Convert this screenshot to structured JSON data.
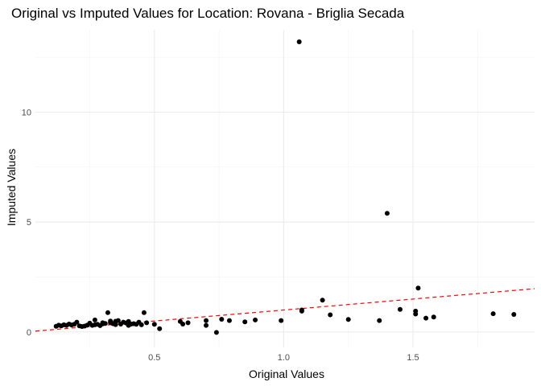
{
  "chart_data": {
    "type": "scatter",
    "title": "Original vs Imputed Values for Location: Rovana - Briglia Secada",
    "xlabel": "Original Values",
    "ylabel": "Imputed Values",
    "xlim": [
      0.04,
      1.97
    ],
    "ylim": [
      -0.7,
      13.75
    ],
    "xticks": [
      0.5,
      1.0,
      1.5
    ],
    "xtick_labels": [
      "0.5",
      "1.0",
      "1.5"
    ],
    "yticks": [
      0,
      5,
      10
    ],
    "ytick_labels": [
      "0",
      "5",
      "10"
    ],
    "grid": true,
    "reference_line": {
      "slope": 1,
      "intercept": 0,
      "style": "dashed",
      "color": "#ff0000"
    },
    "points": [
      [
        0.12,
        0.26
      ],
      [
        0.13,
        0.31
      ],
      [
        0.14,
        0.28
      ],
      [
        0.15,
        0.33
      ],
      [
        0.16,
        0.3
      ],
      [
        0.17,
        0.36
      ],
      [
        0.18,
        0.32
      ],
      [
        0.19,
        0.35
      ],
      [
        0.2,
        0.45
      ],
      [
        0.21,
        0.28
      ],
      [
        0.22,
        0.25
      ],
      [
        0.23,
        0.27
      ],
      [
        0.24,
        0.31
      ],
      [
        0.25,
        0.4
      ],
      [
        0.26,
        0.3
      ],
      [
        0.27,
        0.55
      ],
      [
        0.27,
        0.33
      ],
      [
        0.28,
        0.35
      ],
      [
        0.29,
        0.29
      ],
      [
        0.3,
        0.42
      ],
      [
        0.3,
        0.37
      ],
      [
        0.31,
        0.39
      ],
      [
        0.32,
        0.88
      ],
      [
        0.33,
        0.5
      ],
      [
        0.33,
        0.43
      ],
      [
        0.34,
        0.38
      ],
      [
        0.35,
        0.49
      ],
      [
        0.35,
        0.34
      ],
      [
        0.36,
        0.52
      ],
      [
        0.37,
        0.36
      ],
      [
        0.38,
        0.45
      ],
      [
        0.39,
        0.41
      ],
      [
        0.4,
        0.48
      ],
      [
        0.4,
        0.3
      ],
      [
        0.41,
        0.36
      ],
      [
        0.42,
        0.38
      ],
      [
        0.43,
        0.35
      ],
      [
        0.44,
        0.45
      ],
      [
        0.45,
        0.33
      ],
      [
        0.46,
        0.88
      ],
      [
        0.47,
        0.42
      ],
      [
        0.5,
        0.35
      ],
      [
        0.52,
        0.15
      ],
      [
        0.6,
        0.48
      ],
      [
        0.61,
        0.36
      ],
      [
        0.63,
        0.42
      ],
      [
        0.7,
        0.52
      ],
      [
        0.7,
        0.3
      ],
      [
        0.74,
        -0.02
      ],
      [
        0.76,
        0.58
      ],
      [
        0.79,
        0.52
      ],
      [
        0.85,
        0.46
      ],
      [
        0.89,
        0.55
      ],
      [
        0.99,
        0.52
      ],
      [
        1.06,
        13.2
      ],
      [
        1.07,
        1.0
      ],
      [
        1.07,
        0.95
      ],
      [
        1.15,
        1.45
      ],
      [
        1.18,
        0.78
      ],
      [
        1.25,
        0.57
      ],
      [
        1.37,
        0.52
      ],
      [
        1.4,
        5.4
      ],
      [
        1.45,
        1.03
      ],
      [
        1.51,
        0.95
      ],
      [
        1.51,
        0.82
      ],
      [
        1.52,
        2.0
      ],
      [
        1.55,
        0.63
      ],
      [
        1.58,
        0.68
      ],
      [
        1.81,
        0.83
      ],
      [
        1.89,
        0.8
      ]
    ]
  }
}
